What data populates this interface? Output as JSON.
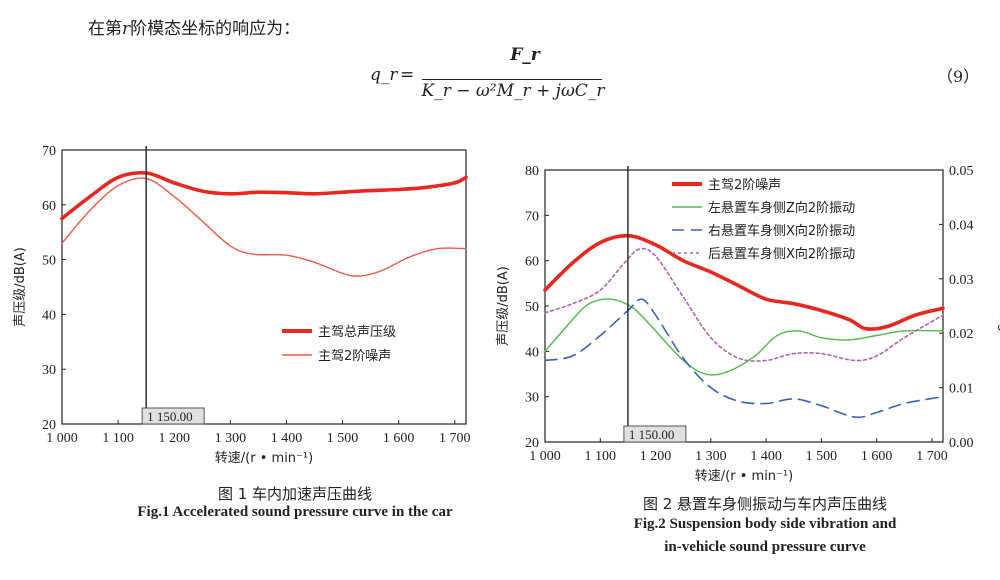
{
  "text": {
    "intro_prefix": "在第",
    "intro_var": "r",
    "intro_suffix": "阶模态坐标的响应为：",
    "eq_lhs": "q_r",
    "eq_equals": "=",
    "eq_numerator": "F_r",
    "eq_denominator": "K_r − ω²M_r + jωC_r",
    "eq_number": "（9）"
  },
  "fig1": {
    "caption_cn": "图 1  车内加速声压曲线",
    "caption_en": "Fig.1  Accelerated sound pressure curve in the car",
    "ylabel": "声压级/dB(A)",
    "xlabel": "转速/(r • min⁻¹)",
    "cursor_label": "1 150.00",
    "legend": [
      "主驾总声压级",
      "主驾2阶噪声"
    ]
  },
  "fig2": {
    "caption_cn": "图 2  悬置车身侧振动与车内声压曲线",
    "caption_en_1": "Fig.2  Suspension body side vibration and",
    "caption_en_2": "in-vehicle sound pressure curve",
    "ylabel": "声压级/dB(A)",
    "y2label": "加速度/g",
    "xlabel": "转速/(r • min⁻¹)",
    "cursor_label": "1 150.00",
    "legend": [
      "主驾2阶噪声",
      "左悬置车身侧Z向2阶振动",
      "右悬置车身侧X向2阶振动",
      "后悬置车身侧X向2阶振动"
    ]
  },
  "chart_data": [
    {
      "type": "line",
      "xlim": [
        1000,
        1720
      ],
      "ylim": [
        20,
        70
      ],
      "x_ticks": [
        "1 000",
        "1 100",
        "1 200",
        "1 300",
        "1 400",
        "1 500",
        "1 600",
        "1 700"
      ],
      "y_ticks": [
        "20",
        "30",
        "40",
        "50",
        "60",
        "70"
      ],
      "cursor_x": 1150,
      "series": [
        {
          "name": "主驾总声压级",
          "color": "#e8281e",
          "x": [
            1000,
            1050,
            1100,
            1150,
            1200,
            1250,
            1300,
            1350,
            1400,
            1450,
            1500,
            1550,
            1600,
            1650,
            1700,
            1720
          ],
          "y": [
            57.5,
            61.5,
            65.0,
            65.8,
            64.0,
            62.5,
            62.0,
            62.3,
            62.2,
            62.0,
            62.3,
            62.6,
            62.8,
            63.2,
            64.0,
            65.0
          ]
        },
        {
          "name": "主驾2阶噪声",
          "color": "#ee5a4a",
          "x": [
            1000,
            1050,
            1100,
            1150,
            1200,
            1250,
            1300,
            1340,
            1400,
            1450,
            1500,
            1530,
            1570,
            1620,
            1670,
            1720
          ],
          "y": [
            53.0,
            59.0,
            63.5,
            64.8,
            61.5,
            57.0,
            52.5,
            51.0,
            50.8,
            49.5,
            47.5,
            47.0,
            48.0,
            50.5,
            52.0,
            52.0
          ]
        }
      ]
    },
    {
      "type": "line",
      "xlim": [
        1000,
        1720
      ],
      "ylim": [
        20,
        80
      ],
      "y2lim": [
        0.0,
        0.05
      ],
      "x_ticks": [
        "1 000",
        "1 100",
        "1 200",
        "1 300",
        "1 400",
        "1 500",
        "1 600",
        "1 700"
      ],
      "y_ticks": [
        "20",
        "30",
        "40",
        "50",
        "60",
        "70",
        "80"
      ],
      "y2_ticks": [
        "0.00",
        "0.01",
        "0.02",
        "0.03",
        "0.04",
        "0.05"
      ],
      "cursor_x": 1150,
      "series": [
        {
          "name": "主驾2阶噪声",
          "color": "#e8281e",
          "axis": "left",
          "x": [
            1000,
            1050,
            1100,
            1150,
            1200,
            1250,
            1300,
            1350,
            1400,
            1450,
            1500,
            1550,
            1580,
            1620,
            1670,
            1720
          ],
          "y": [
            53.5,
            59.5,
            64.0,
            65.5,
            63.5,
            60.0,
            57.5,
            54.5,
            51.5,
            50.5,
            49.0,
            47.0,
            45.0,
            45.5,
            48.0,
            49.5
          ]
        },
        {
          "name": "左悬置车身侧Z向2阶振动",
          "color": "#53b84a",
          "axis": "left",
          "x": [
            1000,
            1050,
            1080,
            1120,
            1160,
            1200,
            1250,
            1290,
            1330,
            1380,
            1420,
            1460,
            1500,
            1550,
            1600,
            1650,
            1720
          ],
          "y": [
            40.0,
            47.0,
            50.5,
            51.5,
            49.5,
            44.5,
            38.0,
            35.0,
            35.5,
            39.0,
            43.5,
            44.5,
            43.0,
            42.5,
            43.5,
            44.5,
            44.5
          ]
        },
        {
          "name": "右悬置车身侧X向2阶振动",
          "color": "#3a62b8",
          "axis": "left",
          "dash": "12,7",
          "x": [
            1000,
            1050,
            1100,
            1150,
            1175,
            1200,
            1250,
            1300,
            1350,
            1400,
            1450,
            1500,
            1560,
            1600,
            1650,
            1720
          ],
          "y": [
            38.0,
            39.0,
            43.5,
            49.0,
            51.5,
            48.0,
            38.5,
            32.0,
            29.0,
            28.5,
            29.5,
            28.0,
            25.5,
            26.5,
            28.5,
            30.0
          ]
        },
        {
          "name": "后悬置车身侧X向2阶振动",
          "color": "#b063b0",
          "axis": "left",
          "dash": "3,3",
          "x": [
            1000,
            1050,
            1100,
            1140,
            1170,
            1200,
            1250,
            1300,
            1350,
            1400,
            1450,
            1500,
            1560,
            1600,
            1650,
            1720
          ],
          "y": [
            48.5,
            50.5,
            53.5,
            59.0,
            62.5,
            61.0,
            52.0,
            43.0,
            38.5,
            38.0,
            39.5,
            39.5,
            38.0,
            39.0,
            43.0,
            48.0
          ]
        }
      ]
    }
  ]
}
